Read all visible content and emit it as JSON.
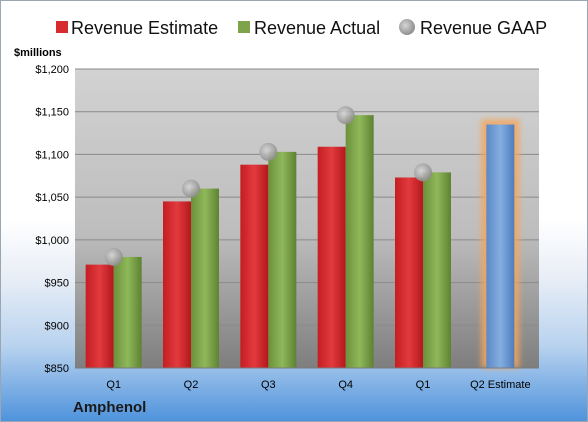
{
  "chart_data": {
    "type": "bar",
    "company": "Amphenol",
    "unit_label": "$millions",
    "categories": [
      "Q1",
      "Q2",
      "Q3",
      "Q4",
      "Q1",
      "Q2 Estimate"
    ],
    "series": [
      {
        "name": "Revenue Estimate",
        "color": "#d62b2f",
        "values": [
          971,
          1045,
          1088,
          1109,
          1073,
          null
        ]
      },
      {
        "name": "Revenue Actual",
        "color": "#7ea34a",
        "values": [
          980,
          1060,
          1103,
          1146,
          1079,
          null
        ]
      },
      {
        "name": "Revenue GAAP",
        "color": "#a8a8a8",
        "marker": "circle",
        "values": [
          980,
          1060,
          1103,
          1146,
          1079,
          null
        ]
      }
    ],
    "estimate_bar": {
      "category": "Q2 Estimate",
      "value": 1135,
      "color": "#6f9bd4",
      "glow": "#f5a65b"
    },
    "ylim": [
      850,
      1200
    ],
    "yticks": [
      850,
      900,
      950,
      1000,
      1050,
      1100,
      1150,
      1200
    ],
    "ytick_labels": [
      "$850",
      "$900",
      "$950",
      "$1,000",
      "$1,050",
      "$1,100",
      "$1,150",
      "$1,200"
    ],
    "grid": true,
    "legend_position": "top"
  }
}
